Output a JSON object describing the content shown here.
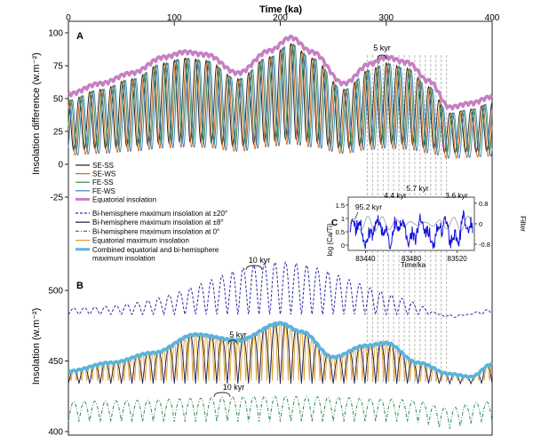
{
  "chart_data": [
    {
      "panel": "A",
      "type": "line",
      "xlabel": "Time (ka)",
      "ylabel": "Insolation difference (w.m⁻²)",
      "xlim": [
        0,
        400
      ],
      "ylim": [
        -25,
        100
      ],
      "x_ticks": [
        "0",
        "100",
        "200",
        "300",
        "400"
      ],
      "y_ticks": [
        "100",
        "75",
        "50",
        "25",
        "0",
        "-25"
      ],
      "annotations": [
        "5 kyr"
      ],
      "grid": false,
      "legend_position": "lower-left",
      "series": [
        {
          "name": "SE-SS",
          "color": "#1a1a1a",
          "period_kyr": 5,
          "phase_kyr": 0.0
        },
        {
          "name": "SE-WS",
          "color": "#d2691e",
          "period_kyr": 5,
          "phase_kyr": 1.25
        },
        {
          "name": "FE-SS",
          "color": "#2e8b57",
          "period_kyr": 5,
          "phase_kyr": 2.5
        },
        {
          "name": "FE-WS",
          "color": "#3a7fb8",
          "period_kyr": 5,
          "phase_kyr": 3.75
        },
        {
          "name": "Equatorial insolation",
          "color": "#c77fc3",
          "x": [
            0,
            30,
            60,
            90,
            110,
            130,
            160,
            190,
            210,
            230,
            260,
            285,
            300,
            320,
            340,
            360,
            380,
            400
          ],
          "y": [
            52,
            60,
            68,
            80,
            84,
            82,
            68,
            85,
            95,
            84,
            60,
            75,
            80,
            76,
            62,
            42,
            45,
            50
          ]
        }
      ]
    },
    {
      "panel": "B",
      "type": "line",
      "xlabel": "",
      "ylabel": "Insolation (w.m⁻²)",
      "xlim": [
        0,
        400
      ],
      "ylim": [
        395,
        525
      ],
      "y_ticks": [
        "500",
        "450",
        "400"
      ],
      "annotations": [
        "10 kyr",
        "5 kyr",
        "10 kyr"
      ],
      "legend_position": "top-left",
      "series": [
        {
          "name": "Bi-hemisphere maximum insolation at ±20°",
          "color": "#2a2aa0",
          "dash": "dashed",
          "period_kyr": 10
        },
        {
          "name": "Bi-hemisphere maximum insolation at ±8°",
          "color": "#1a1a4a",
          "dash": "solid",
          "period_kyr": 10
        },
        {
          "name": "Bi-hemisphere maximum insolation at 0°",
          "color": "#2e8b57",
          "dash": "dashdot",
          "period_kyr": 10
        },
        {
          "name": "Equatorial maximum insolation",
          "color": "#e0a030",
          "dash": "solid",
          "period_kyr": 5
        },
        {
          "name": "Combined equatorial and bi-hemisphere maximum insolation",
          "color": "#5ab4dc",
          "dash": "solid",
          "x": [
            0,
            40,
            80,
            120,
            160,
            200,
            220,
            250,
            280,
            300,
            330,
            360,
            380,
            400
          ],
          "y": [
            442,
            448,
            455,
            468,
            464,
            476,
            470,
            452,
            460,
            462,
            448,
            440,
            438,
            447
          ]
        }
      ]
    },
    {
      "panel": "C",
      "type": "line",
      "xlabel": "Time/ka",
      "ylabel": "log (Ca/Ti)",
      "y2label": "Filter",
      "x_ticks": [
        "83440",
        "83480",
        "83520"
      ],
      "y_ticks": [
        "1.5",
        "1",
        "0.5",
        "0"
      ],
      "y2_ticks": [
        "0.8",
        "0",
        "-0.8"
      ],
      "annotations": [
        "95.2 kyr",
        "4.4 kyr",
        "5.7 kyr",
        "3.6 kyr"
      ],
      "series": [
        {
          "name": "log (Ca/Ti)",
          "color": "#1010e0"
        },
        {
          "name": "Filter",
          "color": "#404040"
        }
      ]
    }
  ],
  "labels": {
    "panel_a": "A",
    "panel_b": "B",
    "panel_c": "C"
  }
}
